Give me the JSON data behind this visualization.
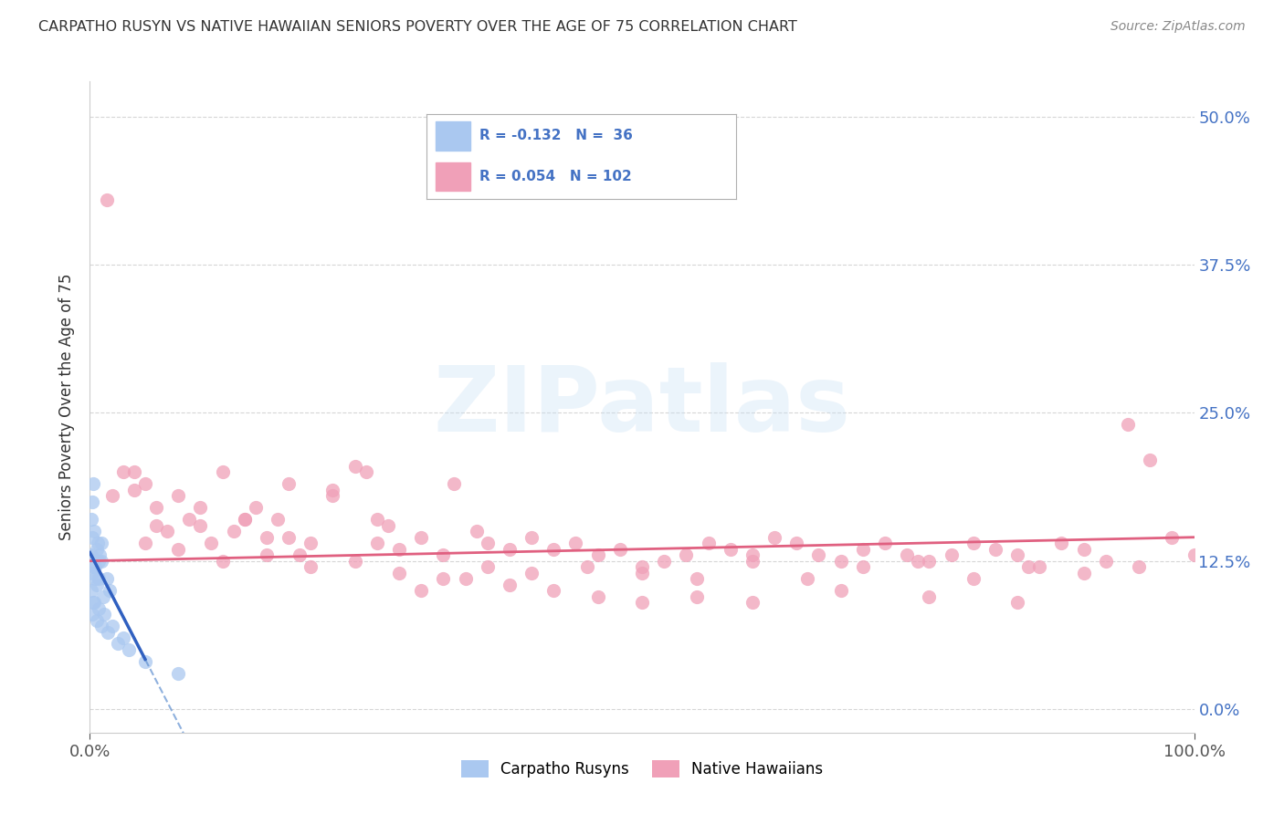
{
  "title": "CARPATHO RUSYN VS NATIVE HAWAIIAN SENIORS POVERTY OVER THE AGE OF 75 CORRELATION CHART",
  "source": "Source: ZipAtlas.com",
  "ylabel": "Seniors Poverty Over the Age of 75",
  "xlabel": "",
  "xlim": [
    0,
    100
  ],
  "ylim": [
    -2,
    53
  ],
  "yticks": [
    0.0,
    12.5,
    25.0,
    37.5,
    50.0
  ],
  "ytick_labels": [
    "0.0%",
    "12.5%",
    "25.0%",
    "37.5%",
    "50.0%"
  ],
  "xtick_labels": [
    "0.0%",
    "100.0%"
  ],
  "color_blue": "#aac8f0",
  "color_pink": "#f0a0b8",
  "color_line_blue_solid": "#3060c0",
  "color_line_blue_dash": "#6090d0",
  "color_line_pink": "#e06080",
  "watermark": "ZIPatlas",
  "background_color": "#ffffff",
  "grid_color": "#cccccc",
  "title_color": "#333333",
  "source_color": "#888888",
  "axis_label_color": "#333333",
  "tick_color": "#4472c4",
  "carpatho_x": [
    0.1,
    0.2,
    0.3,
    0.4,
    0.5,
    0.6,
    0.7,
    0.8,
    0.9,
    1.0,
    0.1,
    0.2,
    0.3,
    0.5,
    0.6,
    0.8,
    1.0,
    1.2,
    1.5,
    1.8,
    0.2,
    0.4,
    0.6,
    0.8,
    1.0,
    1.3,
    1.6,
    2.0,
    2.5,
    3.0,
    0.1,
    0.2,
    0.3,
    3.5,
    5.0,
    8.0
  ],
  "carpatho_y": [
    13.0,
    14.5,
    12.0,
    15.0,
    11.0,
    13.5,
    14.0,
    12.5,
    13.0,
    14.0,
    10.0,
    11.5,
    9.0,
    12.0,
    10.5,
    11.0,
    12.5,
    9.5,
    11.0,
    10.0,
    8.0,
    9.0,
    7.5,
    8.5,
    7.0,
    8.0,
    6.5,
    7.0,
    5.5,
    6.0,
    16.0,
    17.5,
    19.0,
    5.0,
    4.0,
    3.0
  ],
  "native_hawaiian_x": [
    1.5,
    3.0,
    4.0,
    5.0,
    6.0,
    7.0,
    8.0,
    9.0,
    10.0,
    11.0,
    12.0,
    13.0,
    14.0,
    15.0,
    16.0,
    17.0,
    18.0,
    19.0,
    20.0,
    22.0,
    24.0,
    25.0,
    26.0,
    27.0,
    28.0,
    30.0,
    32.0,
    33.0,
    35.0,
    36.0,
    38.0,
    40.0,
    42.0,
    44.0,
    46.0,
    48.0,
    50.0,
    52.0,
    54.0,
    56.0,
    58.0,
    60.0,
    62.0,
    64.0,
    66.0,
    68.0,
    70.0,
    72.0,
    74.0,
    76.0,
    78.0,
    80.0,
    82.0,
    84.0,
    86.0,
    88.0,
    90.0,
    92.0,
    94.0,
    96.0,
    98.0,
    100.0,
    5.0,
    8.0,
    12.0,
    16.0,
    20.0,
    24.0,
    28.0,
    32.0,
    36.0,
    40.0,
    45.0,
    50.0,
    55.0,
    60.0,
    65.0,
    70.0,
    75.0,
    80.0,
    85.0,
    90.0,
    95.0,
    2.0,
    4.0,
    6.0,
    10.0,
    14.0,
    18.0,
    22.0,
    26.0,
    30.0,
    34.0,
    38.0,
    42.0,
    46.0,
    50.0,
    55.0,
    60.0,
    68.0,
    76.0,
    84.0
  ],
  "native_hawaiian_y": [
    43.0,
    20.0,
    18.5,
    19.0,
    17.0,
    15.0,
    18.0,
    16.0,
    15.5,
    14.0,
    20.0,
    15.0,
    16.0,
    17.0,
    14.5,
    16.0,
    19.0,
    13.0,
    14.0,
    18.0,
    20.5,
    20.0,
    14.0,
    15.5,
    13.5,
    14.5,
    13.0,
    19.0,
    15.0,
    14.0,
    13.5,
    14.5,
    13.5,
    14.0,
    13.0,
    13.5,
    12.0,
    12.5,
    13.0,
    14.0,
    13.5,
    13.0,
    14.5,
    14.0,
    13.0,
    12.5,
    13.5,
    14.0,
    13.0,
    12.5,
    13.0,
    14.0,
    13.5,
    13.0,
    12.0,
    14.0,
    13.5,
    12.5,
    24.0,
    21.0,
    14.5,
    13.0,
    14.0,
    13.5,
    12.5,
    13.0,
    12.0,
    12.5,
    11.5,
    11.0,
    12.0,
    11.5,
    12.0,
    11.5,
    11.0,
    12.5,
    11.0,
    12.0,
    12.5,
    11.0,
    12.0,
    11.5,
    12.0,
    18.0,
    20.0,
    15.5,
    17.0,
    16.0,
    14.5,
    18.5,
    16.0,
    10.0,
    11.0,
    10.5,
    10.0,
    9.5,
    9.0,
    9.5,
    9.0,
    10.0,
    9.5,
    9.0
  ]
}
